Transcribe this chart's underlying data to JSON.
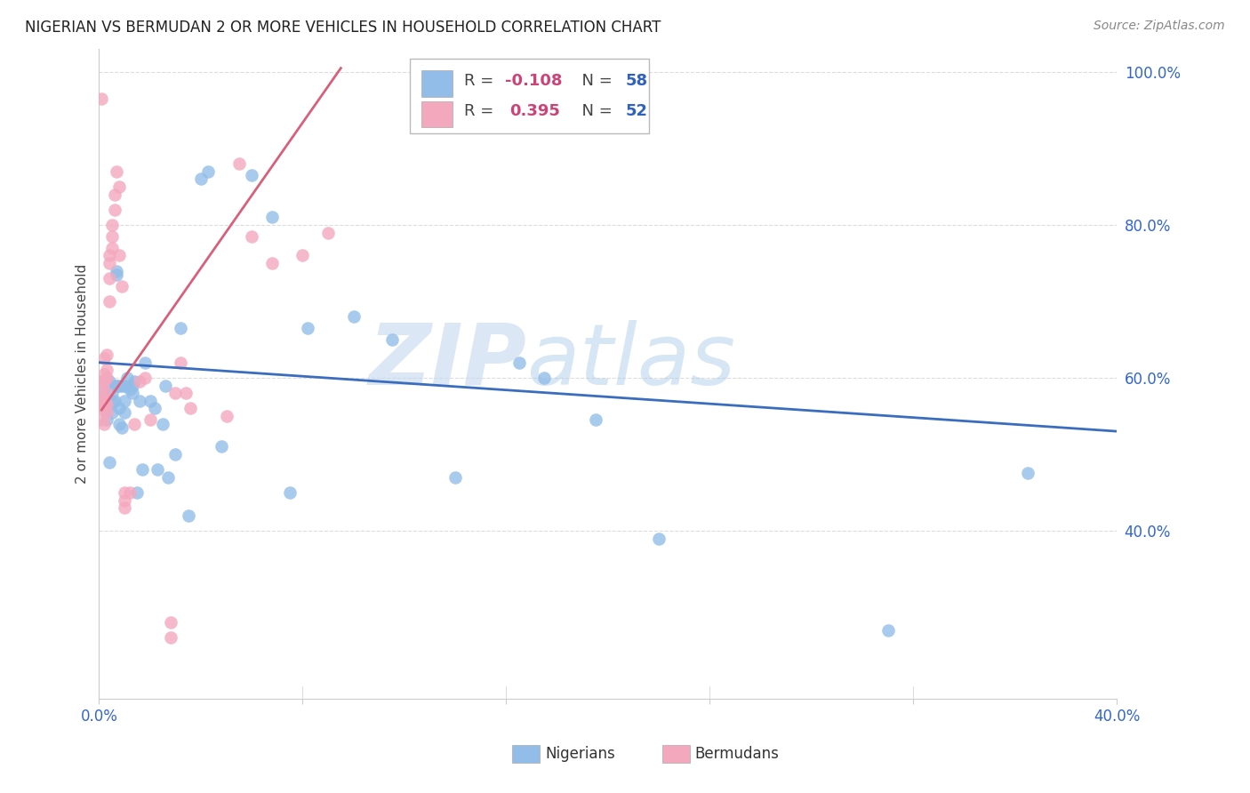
{
  "title": "NIGERIAN VS BERMUDAN 2 OR MORE VEHICLES IN HOUSEHOLD CORRELATION CHART",
  "source": "Source: ZipAtlas.com",
  "ylabel": "2 or more Vehicles in Household",
  "xlim": [
    0.0,
    0.4
  ],
  "ylim": [
    0.18,
    1.03
  ],
  "xtick_vals": [
    0.0,
    0.08,
    0.16,
    0.24,
    0.32,
    0.4
  ],
  "ytick_vals": [
    0.4,
    0.6,
    0.8,
    1.0
  ],
  "background_color": "#ffffff",
  "grid_color": "#dddddd",
  "blue_scatter_color": "#92bde8",
  "pink_scatter_color": "#f4a8be",
  "blue_line_color": "#3b6dbf",
  "pink_line_color": "#d9607a",
  "R_blue": "-0.108",
  "N_blue": "58",
  "R_pink": "0.395",
  "N_pink": "52",
  "watermark_zip": "ZIP",
  "watermark_atlas": "atlas",
  "blue_scatter_x": [
    0.001,
    0.002,
    0.002,
    0.003,
    0.003,
    0.004,
    0.004,
    0.005,
    0.005,
    0.005,
    0.006,
    0.006,
    0.007,
    0.007,
    0.007,
    0.008,
    0.008,
    0.008,
    0.009,
    0.009,
    0.01,
    0.01,
    0.01,
    0.011,
    0.012,
    0.012,
    0.013,
    0.013,
    0.014,
    0.015,
    0.016,
    0.017,
    0.018,
    0.02,
    0.022,
    0.023,
    0.025,
    0.026,
    0.027,
    0.03,
    0.032,
    0.035,
    0.04,
    0.043,
    0.048,
    0.06,
    0.068,
    0.075,
    0.082,
    0.1,
    0.115,
    0.14,
    0.165,
    0.175,
    0.195,
    0.22,
    0.31,
    0.365
  ],
  "blue_scatter_y": [
    0.595,
    0.58,
    0.57,
    0.56,
    0.545,
    0.595,
    0.49,
    0.58,
    0.57,
    0.555,
    0.59,
    0.57,
    0.74,
    0.735,
    0.59,
    0.59,
    0.56,
    0.54,
    0.59,
    0.535,
    0.59,
    0.57,
    0.555,
    0.6,
    0.59,
    0.585,
    0.59,
    0.58,
    0.595,
    0.45,
    0.57,
    0.48,
    0.62,
    0.57,
    0.56,
    0.48,
    0.54,
    0.59,
    0.47,
    0.5,
    0.665,
    0.42,
    0.86,
    0.87,
    0.51,
    0.865,
    0.81,
    0.45,
    0.665,
    0.68,
    0.65,
    0.47,
    0.62,
    0.6,
    0.545,
    0.39,
    0.27,
    0.475
  ],
  "pink_scatter_x": [
    0.001,
    0.001,
    0.001,
    0.001,
    0.001,
    0.001,
    0.001,
    0.002,
    0.002,
    0.002,
    0.002,
    0.002,
    0.002,
    0.003,
    0.003,
    0.003,
    0.003,
    0.003,
    0.003,
    0.004,
    0.004,
    0.004,
    0.004,
    0.005,
    0.005,
    0.005,
    0.006,
    0.006,
    0.007,
    0.008,
    0.008,
    0.009,
    0.01,
    0.01,
    0.01,
    0.012,
    0.014,
    0.016,
    0.018,
    0.02,
    0.028,
    0.028,
    0.03,
    0.032,
    0.034,
    0.036,
    0.05,
    0.055,
    0.06,
    0.068,
    0.08,
    0.09
  ],
  "pink_scatter_y": [
    0.965,
    0.575,
    0.59,
    0.57,
    0.565,
    0.56,
    0.545,
    0.625,
    0.605,
    0.595,
    0.57,
    0.56,
    0.54,
    0.63,
    0.61,
    0.6,
    0.58,
    0.565,
    0.555,
    0.76,
    0.75,
    0.73,
    0.7,
    0.8,
    0.785,
    0.77,
    0.84,
    0.82,
    0.87,
    0.85,
    0.76,
    0.72,
    0.45,
    0.44,
    0.43,
    0.45,
    0.54,
    0.595,
    0.6,
    0.545,
    0.26,
    0.28,
    0.58,
    0.62,
    0.58,
    0.56,
    0.55,
    0.88,
    0.785,
    0.75,
    0.76,
    0.79
  ],
  "blue_line_x": [
    0.0,
    0.4
  ],
  "blue_line_y": [
    0.62,
    0.53
  ],
  "pink_line_x": [
    0.001,
    0.095
  ],
  "pink_line_y": [
    0.558,
    1.005
  ]
}
